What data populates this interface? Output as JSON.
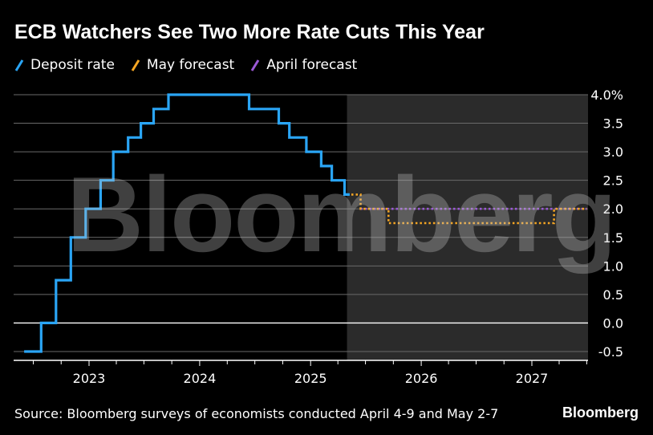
{
  "title": "ECB Watchers See Two More Rate Cuts This Year",
  "legend": [
    {
      "label": "Deposit rate",
      "color": "#2aa5f5"
    },
    {
      "label": "May forecast",
      "color": "#f5a623"
    },
    {
      "label": "April forecast",
      "color": "#9b59d6"
    }
  ],
  "source": "Source: Bloomberg surveys of economists conducted April 4-9 and May 2-7",
  "brand": "Bloomberg",
  "watermark": "Bloomberg",
  "chart_data": {
    "type": "line",
    "title": "ECB Watchers See Two More Rate Cuts This Year",
    "ylim": [
      -0.6,
      4.0
    ],
    "y_ticks": [
      {
        "value": 4.0,
        "label": "4.0%"
      },
      {
        "value": 3.5,
        "label": "3.5"
      },
      {
        "value": 3.0,
        "label": "3.0"
      },
      {
        "value": 2.5,
        "label": "2.5"
      },
      {
        "value": 2.0,
        "label": "2.0"
      },
      {
        "value": 1.5,
        "label": "1.5"
      },
      {
        "value": 1.0,
        "label": "1.0"
      },
      {
        "value": 0.5,
        "label": "0.5"
      },
      {
        "value": 0.0,
        "label": "0.0"
      },
      {
        "value": -0.5,
        "label": "-0.5"
      }
    ],
    "xlim": [
      "2022-06-01",
      "2027-09-01"
    ],
    "x_ticks": [
      {
        "date": "2023-01-01",
        "label": "2023"
      },
      {
        "date": "2024-01-01",
        "label": "2024"
      },
      {
        "date": "2025-01-01",
        "label": "2025"
      },
      {
        "date": "2026-01-01",
        "label": "2026"
      },
      {
        "date": "2027-01-01",
        "label": "2027"
      }
    ],
    "forecast_region_start": "2025-05-01",
    "grid": true,
    "legend_position": "top-left",
    "series": [
      {
        "name": "Deposit rate",
        "color": "#2aa5f5",
        "style": "solid",
        "step": true,
        "points": [
          {
            "x": "2022-06-01",
            "y": -0.5
          },
          {
            "x": "2022-07-27",
            "y": 0.0
          },
          {
            "x": "2022-09-14",
            "y": 0.75
          },
          {
            "x": "2022-11-02",
            "y": 1.5
          },
          {
            "x": "2022-12-21",
            "y": 2.0
          },
          {
            "x": "2023-02-08",
            "y": 2.5
          },
          {
            "x": "2023-03-22",
            "y": 3.0
          },
          {
            "x": "2023-05-10",
            "y": 3.25
          },
          {
            "x": "2023-06-21",
            "y": 3.5
          },
          {
            "x": "2023-08-02",
            "y": 3.75
          },
          {
            "x": "2023-09-20",
            "y": 4.0
          },
          {
            "x": "2024-06-12",
            "y": 3.75
          },
          {
            "x": "2024-09-18",
            "y": 3.5
          },
          {
            "x": "2024-10-23",
            "y": 3.25
          },
          {
            "x": "2024-12-18",
            "y": 3.0
          },
          {
            "x": "2025-02-05",
            "y": 2.75
          },
          {
            "x": "2025-03-12",
            "y": 2.5
          },
          {
            "x": "2025-04-23",
            "y": 2.25
          },
          {
            "x": "2025-05-10",
            "y": 2.25
          }
        ]
      },
      {
        "name": "May forecast",
        "color": "#f5a623",
        "style": "dotted",
        "step": true,
        "points": [
          {
            "x": "2025-05-01",
            "y": 2.25
          },
          {
            "x": "2025-06-15",
            "y": 2.0
          },
          {
            "x": "2025-09-15",
            "y": 1.75
          },
          {
            "x": "2027-03-15",
            "y": 2.0
          },
          {
            "x": "2027-07-01",
            "y": 2.0
          }
        ]
      },
      {
        "name": "April forecast",
        "color": "#9b59d6",
        "style": "dotted",
        "step": true,
        "points": [
          {
            "x": "2025-06-15",
            "y": 2.0
          },
          {
            "x": "2027-07-01",
            "y": 2.0
          }
        ]
      }
    ]
  }
}
